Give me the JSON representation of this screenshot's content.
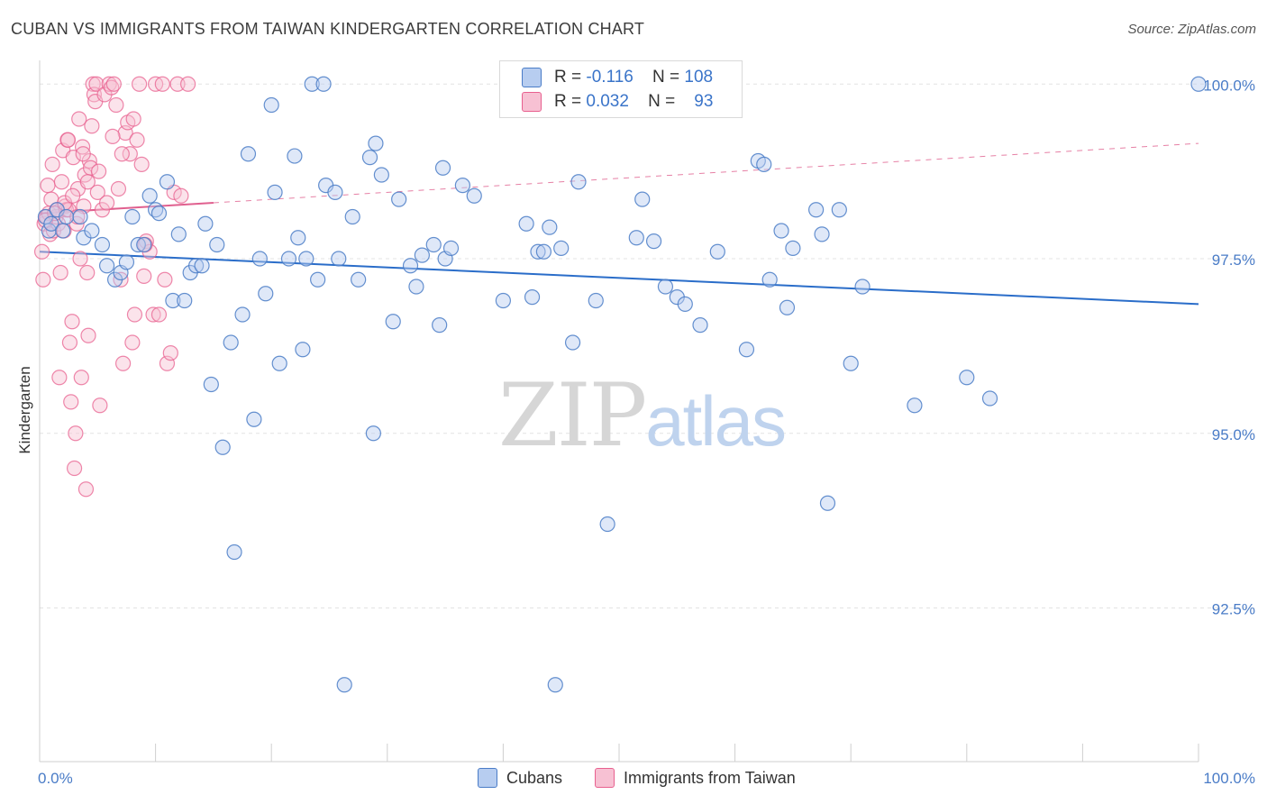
{
  "title": "CUBAN VS IMMIGRANTS FROM TAIWAN KINDERGARTEN CORRELATION CHART",
  "source": "Source: ZipAtlas.com",
  "watermark": {
    "zip": "ZIP",
    "atlas": "atlas"
  },
  "legend_top": {
    "rows": [
      {
        "r_label": "R =",
        "r_value": "-0.116",
        "n_label": "N =",
        "n_value": "108"
      },
      {
        "r_label": "R =",
        "r_value": "0.032",
        "n_label": "N =",
        "n_value": "93"
      }
    ]
  },
  "legend_bottom": {
    "cubans": "Cubans",
    "taiwan": "Immigrants from Taiwan"
  },
  "colors": {
    "blue": "#4a7cc7",
    "blue_fill": "#b7cdf0",
    "pink": "#e8608f",
    "pink_fill": "#f7c1d3",
    "trend_blue": "#2a6dc9",
    "trend_pink": "#e0608f"
  },
  "chart_data": {
    "type": "scatter",
    "title": "CUBAN VS IMMIGRANTS FROM TAIWAN KINDERGARTEN CORRELATION CHART",
    "xlabel": "",
    "ylabel": "Kindergarten",
    "xlim": [
      0,
      100
    ],
    "ylim": [
      90.3,
      100.3
    ],
    "x_tick_labels": [
      "0.0%",
      "100.0%"
    ],
    "y_ticks": [
      92.5,
      95.0,
      97.5,
      100.0
    ],
    "y_tick_labels": [
      "92.5%",
      "95.0%",
      "97.5%",
      "100.0%"
    ],
    "grid": true,
    "series": [
      {
        "name": "Cubans",
        "trend": {
          "x": [
            0,
            100
          ],
          "y": [
            97.6,
            96.85
          ]
        },
        "points": [
          [
            0.5,
            98.1
          ],
          [
            0.8,
            97.9
          ],
          [
            1.0,
            98.0
          ],
          [
            1.5,
            98.2
          ],
          [
            2.0,
            97.9
          ],
          [
            2.3,
            98.1
          ],
          [
            3.5,
            98.1
          ],
          [
            3.8,
            97.8
          ],
          [
            4.5,
            97.9
          ],
          [
            5.4,
            97.7
          ],
          [
            5.8,
            97.4
          ],
          [
            6.5,
            97.2
          ],
          [
            7.0,
            97.3
          ],
          [
            7.5,
            97.45
          ],
          [
            8.0,
            98.1
          ],
          [
            8.5,
            97.7
          ],
          [
            9.0,
            97.7
          ],
          [
            9.5,
            98.4
          ],
          [
            10.0,
            98.2
          ],
          [
            10.3,
            98.15
          ],
          [
            11.0,
            98.6
          ],
          [
            11.5,
            96.9
          ],
          [
            12.0,
            97.85
          ],
          [
            12.5,
            96.9
          ],
          [
            13.0,
            97.3
          ],
          [
            13.5,
            97.4
          ],
          [
            14.0,
            97.4
          ],
          [
            14.3,
            98.0
          ],
          [
            14.8,
            95.7
          ],
          [
            15.3,
            97.7
          ],
          [
            15.8,
            94.8
          ],
          [
            16.5,
            96.3
          ],
          [
            16.8,
            93.3
          ],
          [
            17.5,
            96.7
          ],
          [
            18.0,
            99.0
          ],
          [
            18.5,
            95.2
          ],
          [
            19.0,
            97.5
          ],
          [
            19.5,
            97.0
          ],
          [
            20.0,
            99.7
          ],
          [
            20.3,
            98.45
          ],
          [
            20.7,
            96.0
          ],
          [
            21.5,
            97.5
          ],
          [
            22.0,
            98.97
          ],
          [
            22.3,
            97.8
          ],
          [
            22.7,
            96.2
          ],
          [
            23.0,
            97.5
          ],
          [
            23.5,
            100.0
          ],
          [
            24.0,
            97.2
          ],
          [
            24.5,
            100.0
          ],
          [
            24.7,
            98.55
          ],
          [
            25.5,
            98.45
          ],
          [
            25.8,
            97.5
          ],
          [
            26.3,
            91.4
          ],
          [
            27.0,
            98.1
          ],
          [
            27.5,
            97.2
          ],
          [
            28.5,
            98.95
          ],
          [
            28.8,
            95.0
          ],
          [
            29.0,
            99.15
          ],
          [
            29.5,
            98.7
          ],
          [
            30.5,
            96.6
          ],
          [
            31.0,
            98.35
          ],
          [
            32.0,
            97.4
          ],
          [
            32.5,
            97.1
          ],
          [
            33.0,
            97.55
          ],
          [
            34.0,
            97.7
          ],
          [
            34.5,
            96.55
          ],
          [
            34.8,
            98.8
          ],
          [
            35.0,
            97.5
          ],
          [
            35.5,
            97.65
          ],
          [
            36.5,
            98.55
          ],
          [
            37.5,
            98.4
          ],
          [
            40.0,
            96.9
          ],
          [
            42.0,
            98.0
          ],
          [
            42.5,
            96.95
          ],
          [
            43.0,
            97.6
          ],
          [
            43.5,
            97.6
          ],
          [
            44.0,
            97.95
          ],
          [
            44.5,
            91.4
          ],
          [
            45.0,
            97.65
          ],
          [
            46.0,
            96.3
          ],
          [
            46.5,
            98.6
          ],
          [
            48.0,
            96.9
          ],
          [
            49.0,
            93.7
          ],
          [
            51.5,
            97.8
          ],
          [
            52.0,
            98.35
          ],
          [
            53.0,
            97.75
          ],
          [
            54.0,
            97.1
          ],
          [
            55.0,
            96.95
          ],
          [
            55.7,
            96.85
          ],
          [
            57.0,
            96.55
          ],
          [
            58.5,
            97.6
          ],
          [
            61.0,
            96.2
          ],
          [
            62.0,
            98.9
          ],
          [
            62.5,
            98.85
          ],
          [
            63.0,
            97.2
          ],
          [
            64.0,
            97.9
          ],
          [
            64.5,
            96.8
          ],
          [
            65.0,
            97.65
          ],
          [
            67.0,
            98.2
          ],
          [
            67.5,
            97.85
          ],
          [
            68.0,
            94.0
          ],
          [
            69.0,
            98.2
          ],
          [
            70.0,
            96.0
          ],
          [
            71.0,
            97.1
          ],
          [
            75.5,
            95.4
          ],
          [
            80.0,
            95.8
          ],
          [
            82.0,
            95.5
          ],
          [
            100.0,
            100.0
          ]
        ]
      },
      {
        "name": "Immigrants from Taiwan",
        "trend": {
          "x": [
            0,
            15
          ],
          "y": [
            98.15,
            98.3
          ]
        },
        "points": [
          [
            0.2,
            97.6
          ],
          [
            0.3,
            97.2
          ],
          [
            0.4,
            98.0
          ],
          [
            0.6,
            98.1
          ],
          [
            0.7,
            98.55
          ],
          [
            0.8,
            98.15
          ],
          [
            0.9,
            97.85
          ],
          [
            1.0,
            98.35
          ],
          [
            1.1,
            98.85
          ],
          [
            1.2,
            97.9
          ],
          [
            1.4,
            98.1
          ],
          [
            1.5,
            98.2
          ],
          [
            1.6,
            98.0
          ],
          [
            1.7,
            95.8
          ],
          [
            1.8,
            97.3
          ],
          [
            1.9,
            98.6
          ],
          [
            2.0,
            99.05
          ],
          [
            2.1,
            97.9
          ],
          [
            2.2,
            98.25
          ],
          [
            2.3,
            98.2
          ],
          [
            2.4,
            99.2
          ],
          [
            2.5,
            98.2
          ],
          [
            2.6,
            96.3
          ],
          [
            2.7,
            95.45
          ],
          [
            2.8,
            96.6
          ],
          [
            2.9,
            98.95
          ],
          [
            3.0,
            94.5
          ],
          [
            3.1,
            95.0
          ],
          [
            3.2,
            98.0
          ],
          [
            3.3,
            98.5
          ],
          [
            3.4,
            99.5
          ],
          [
            3.5,
            97.5
          ],
          [
            3.6,
            95.8
          ],
          [
            3.7,
            99.1
          ],
          [
            3.8,
            98.25
          ],
          [
            3.9,
            98.7
          ],
          [
            4.0,
            94.2
          ],
          [
            4.1,
            97.3
          ],
          [
            4.2,
            96.4
          ],
          [
            4.3,
            98.9
          ],
          [
            4.4,
            98.8
          ],
          [
            4.5,
            99.4
          ],
          [
            4.6,
            100.0
          ],
          [
            4.7,
            99.85
          ],
          [
            4.8,
            99.75
          ],
          [
            4.9,
            100.0
          ],
          [
            5.0,
            98.45
          ],
          [
            5.2,
            95.4
          ],
          [
            5.4,
            98.2
          ],
          [
            5.6,
            99.85
          ],
          [
            5.8,
            98.3
          ],
          [
            6.0,
            100.0
          ],
          [
            6.2,
            99.95
          ],
          [
            6.4,
            100.0
          ],
          [
            6.6,
            99.7
          ],
          [
            6.8,
            98.5
          ],
          [
            7.0,
            97.2
          ],
          [
            7.2,
            96.0
          ],
          [
            7.4,
            99.3
          ],
          [
            7.6,
            99.45
          ],
          [
            7.8,
            99.0
          ],
          [
            8.0,
            96.3
          ],
          [
            8.2,
            96.7
          ],
          [
            8.4,
            99.2
          ],
          [
            8.6,
            100.0
          ],
          [
            8.8,
            98.85
          ],
          [
            9.0,
            97.25
          ],
          [
            9.2,
            97.75
          ],
          [
            9.5,
            97.6
          ],
          [
            9.8,
            96.7
          ],
          [
            10.0,
            100.0
          ],
          [
            10.3,
            96.7
          ],
          [
            10.6,
            100.0
          ],
          [
            11.0,
            96.0
          ],
          [
            11.3,
            96.15
          ],
          [
            11.6,
            98.45
          ],
          [
            11.9,
            100.0
          ],
          [
            12.2,
            98.4
          ],
          [
            0.5,
            98.05
          ],
          [
            1.3,
            98.15
          ],
          [
            2.15,
            98.3
          ],
          [
            2.45,
            99.2
          ],
          [
            2.85,
            98.4
          ],
          [
            3.25,
            98.1
          ],
          [
            3.75,
            99.0
          ],
          [
            4.15,
            98.6
          ],
          [
            5.1,
            98.75
          ],
          [
            6.3,
            99.25
          ],
          [
            7.1,
            99.0
          ],
          [
            8.1,
            99.5
          ],
          [
            9.1,
            97.7
          ],
          [
            10.8,
            97.2
          ],
          [
            12.8,
            100.0
          ]
        ]
      }
    ]
  }
}
